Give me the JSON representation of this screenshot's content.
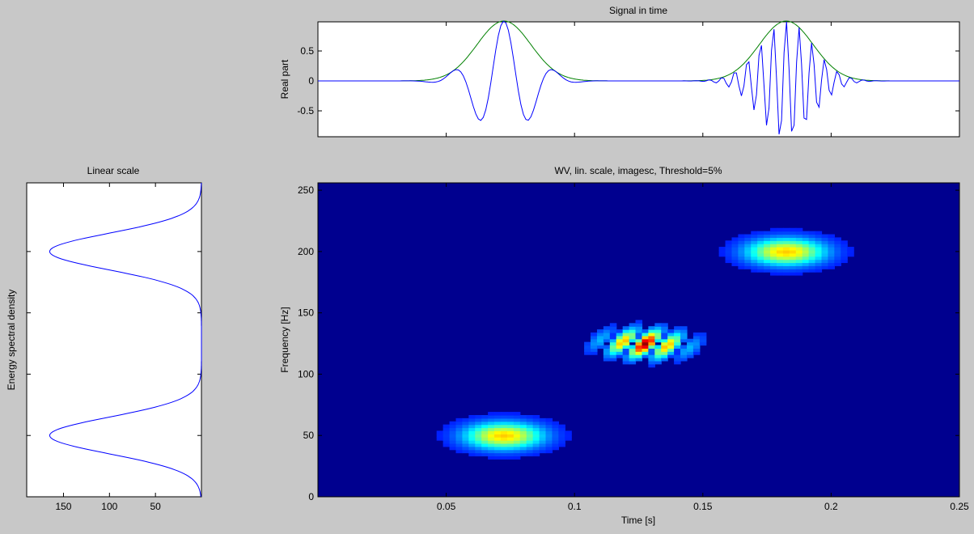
{
  "chart_data": [
    {
      "type": "line",
      "panel": "signal-in-time",
      "title": "Signal in time",
      "xlabel": "",
      "ylabel": "Real part",
      "xlim": [
        0,
        0.25
      ],
      "ylim": [
        -1,
        1
      ],
      "y_ticks": [
        0.5,
        0,
        -0.5
      ],
      "y_tick_labels": [
        "0.5",
        "0",
        "-0.5"
      ],
      "x_ticks": [
        0.05,
        0.1,
        0.15,
        0.2
      ],
      "grid": false,
      "packets": [
        {
          "center": 0.0725,
          "sigma": 0.0105,
          "frequency": 50,
          "window": [
            0.036,
            0.104
          ]
        },
        {
          "center": 0.1825,
          "sigma": 0.0105,
          "frequency": 200,
          "window": [
            0.146,
            0.216
          ]
        }
      ],
      "series": [
        {
          "role": "real-part",
          "color": "#0000ff"
        },
        {
          "role": "envelope",
          "color": "#008000"
        }
      ]
    },
    {
      "type": "line",
      "panel": "linear-scale",
      "title": "Linear scale",
      "xlabel": "",
      "ylabel": "Energy spectral density",
      "xlim": [
        190,
        0
      ],
      "ylim": [
        0,
        256
      ],
      "x_ticks": [
        150,
        100,
        50
      ],
      "x_tick_labels": [
        "150",
        "100",
        "50"
      ],
      "y_ticks": [
        50,
        100,
        150,
        200
      ],
      "peaks": [
        {
          "frequency": 50,
          "value": 165,
          "halfwidth": 15
        },
        {
          "frequency": 200,
          "value": 165,
          "halfwidth": 15
        }
      ],
      "color": "#0000ff"
    },
    {
      "type": "heatmap",
      "panel": "wv-distribution",
      "title": "WV, lin. scale, imagesc, Threshold=5%",
      "xlabel": "Time [s]",
      "ylabel": "Frequency [Hz]",
      "xlim": [
        0,
        0.25
      ],
      "ylim": [
        0,
        256
      ],
      "x_ticks": [
        0.05,
        0.1,
        0.15,
        0.2,
        0.25
      ],
      "x_tick_labels": [
        "0.05",
        "0.1",
        "0.15",
        "0.2",
        "0.25"
      ],
      "y_ticks": [
        0,
        50,
        100,
        150,
        200,
        250
      ],
      "y_tick_labels": [
        "0",
        "50",
        "100",
        "150",
        "200",
        "250"
      ],
      "colormap": "jet",
      "background_color": "#00008f",
      "blobs": [
        {
          "name": "auto-term-1",
          "t": 0.0725,
          "f": 50,
          "amplitude": 0.55
        },
        {
          "name": "auto-term-2",
          "t": 0.1825,
          "f": 200,
          "amplitude": 0.55
        },
        {
          "name": "cross-term",
          "t": 0.1275,
          "f": 125,
          "amplitude": 0.85
        }
      ]
    }
  ]
}
